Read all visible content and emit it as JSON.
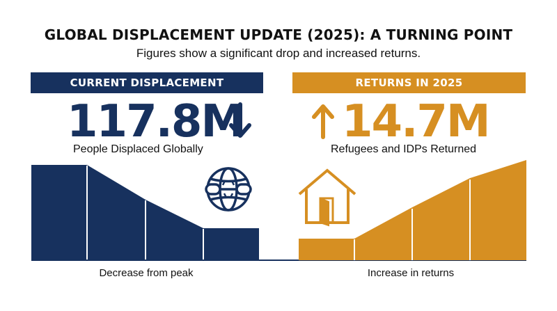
{
  "title": "GLOBAL DISPLACEMENT UPDATE (2025): A TURNING POINT",
  "subtitle": "Figures show a significant drop and increased returns.",
  "left": {
    "banner": "CURRENT DISPLACEMENT",
    "value": "117.8M",
    "description": "People Displaced Globally",
    "footer": "Decrease from peak",
    "icon": "globe-broken-chain-icon",
    "arrow_icon": "arrow-down-icon",
    "color": "#17315e"
  },
  "right": {
    "banner": "RETURNS IN 2025",
    "value": "14.7M",
    "description": "Refugees and IDPs Returned",
    "footer": "Increase in returns",
    "icon": "house-open-door-icon",
    "arrow_icon": "arrow-up-icon",
    "color": "#d68f22"
  }
}
